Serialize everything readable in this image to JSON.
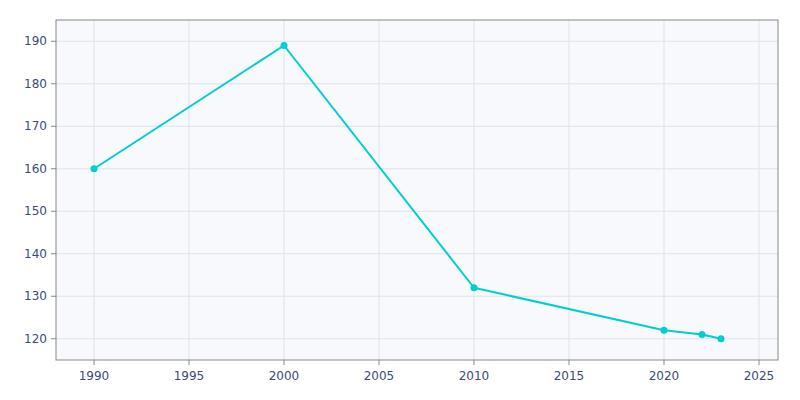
{
  "chart_data": {
    "type": "line",
    "x": [
      1990,
      2000,
      2010,
      2020,
      2022,
      2023
    ],
    "values": [
      160,
      189,
      132,
      122,
      121,
      120
    ],
    "color": "#00CED1",
    "marker": "circle",
    "xlim": [
      1988,
      2026
    ],
    "ylim": [
      115,
      195
    ],
    "xticks": [
      1990,
      1995,
      2000,
      2005,
      2010,
      2015,
      2020,
      2025
    ],
    "yticks": [
      120,
      130,
      140,
      150,
      160,
      170,
      180,
      190
    ],
    "grid": true
  }
}
